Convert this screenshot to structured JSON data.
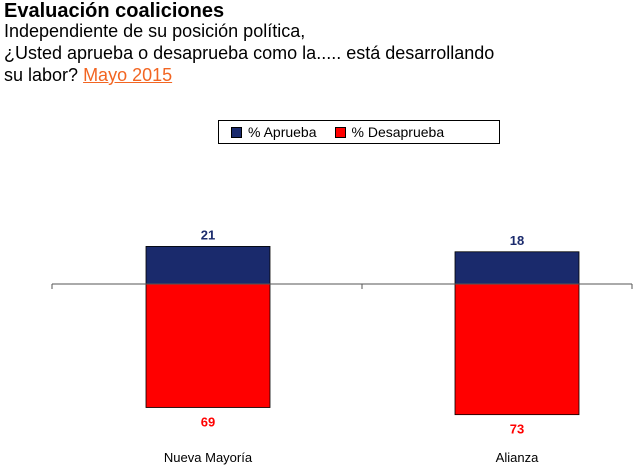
{
  "header": {
    "title": "Evaluación coaliciones",
    "line1": "Independiente de su posición política,",
    "line2": "¿Usted aprueba o desaprueba como la..... está desarrollando",
    "line3_prefix": "su labor? ",
    "date": "Mayo 2015"
  },
  "colors": {
    "aprueba": "#1a2a6c",
    "desaprueba": "#ff0000",
    "date": "#f26522"
  },
  "chart_data": {
    "type": "bar",
    "categories": [
      "Nueva Mayoría",
      "Alianza"
    ],
    "series": [
      {
        "name": "% Aprueba",
        "values": [
          21,
          18
        ],
        "direction": "up"
      },
      {
        "name": "% Desaprueba",
        "values": [
          69,
          73
        ],
        "direction": "down"
      }
    ],
    "legend_position": "top-center",
    "grid": false
  }
}
